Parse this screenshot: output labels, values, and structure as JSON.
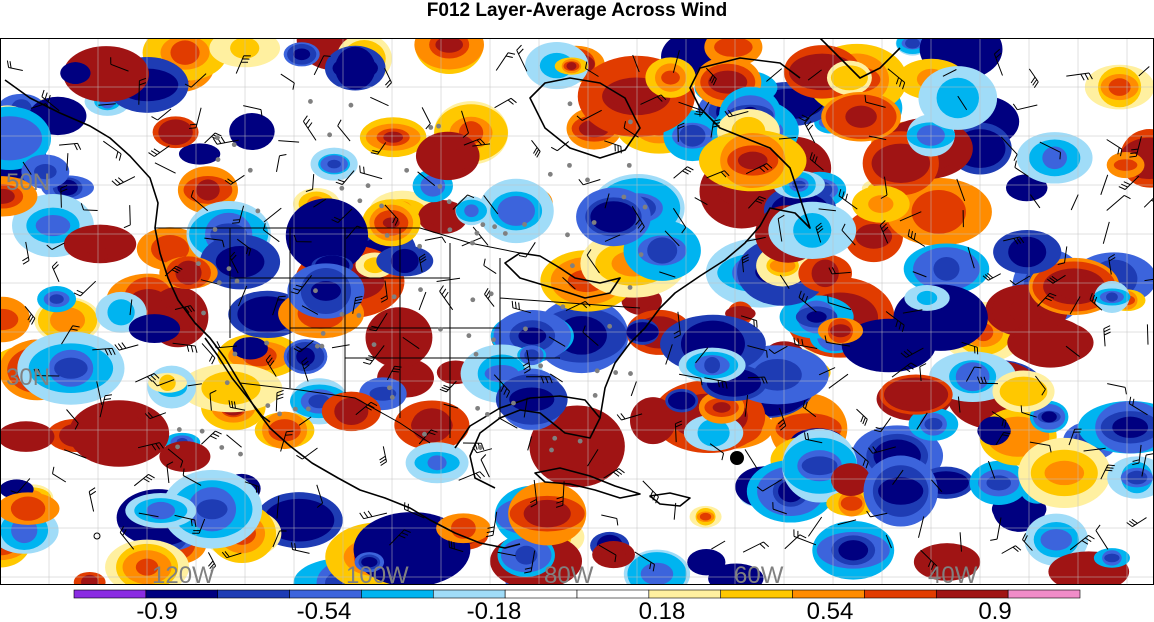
{
  "title": "F012 Layer-Average Across Wind",
  "lon_labels": [
    "120W",
    "100W",
    "80W",
    "60W",
    "40W"
  ],
  "lat_labels": [
    "50N",
    "30N"
  ],
  "colorbar": {
    "colors": [
      "#8a2be2",
      "#000080",
      "#1e3cb4",
      "#3c64dc",
      "#00b4f0",
      "#a0dcf8",
      "#ffffff",
      "#ffffff",
      "#fff0a0",
      "#ffc800",
      "#ff8c00",
      "#e13c00",
      "#a01414",
      "#f08cc8"
    ],
    "labels": [
      "-0.9",
      "-0.54",
      "-0.18",
      "0.18",
      "0.54",
      "0.9"
    ]
  },
  "colors": {
    "map_background": "#ffffff",
    "coastline": "#000000",
    "grid_label": "#808080",
    "station": "#808080"
  }
}
